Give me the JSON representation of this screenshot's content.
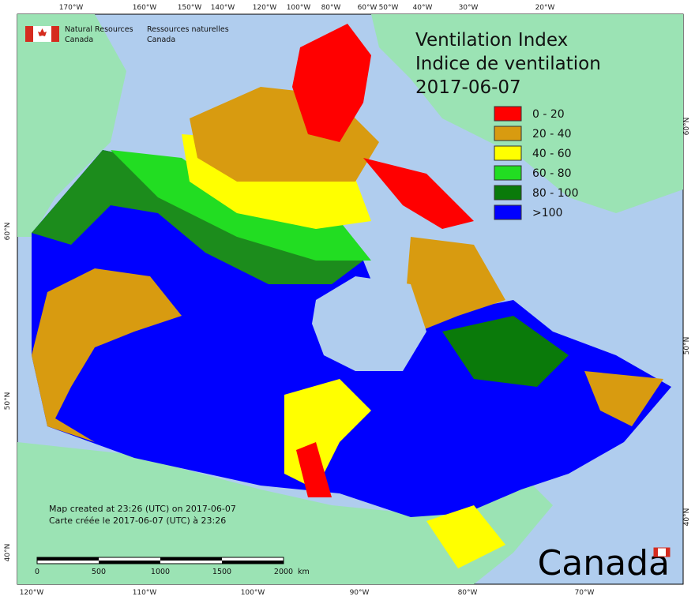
{
  "header": {
    "agency_en": [
      "Natural Resources",
      "Canada"
    ],
    "agency_fr": [
      "Ressources naturelles",
      "Canada"
    ]
  },
  "title": [
    "Ventilation Index",
    "Indice de ventilation",
    "2017-06-07"
  ],
  "legend": [
    {
      "label": "0 - 20",
      "color": "#ff0000"
    },
    {
      "label": "20 - 40",
      "color": "#d89b10"
    },
    {
      "label": "40 - 60",
      "color": "#ffff00"
    },
    {
      "label": "60 - 80",
      "color": "#22dd22"
    },
    {
      "label": "80 - 100",
      "color": "#0a7a0a"
    },
    {
      "label": ">100",
      "color": "#0000ff"
    }
  ],
  "graticule": {
    "top": [
      "170°W",
      "160°W",
      "150°W",
      "140°W",
      "120°W",
      "100°W",
      "80°W",
      "60°W",
      "50°W",
      "40°W",
      "30°W",
      "20°W"
    ],
    "bottom": [
      "120°W",
      "110°W",
      "100°W",
      "90°W",
      "80°W",
      "70°W"
    ],
    "left": [
      "60°N",
      "50°N",
      "40°N"
    ],
    "right": [
      "60°N",
      "50°N",
      "40°N"
    ]
  },
  "footnote": [
    "Map created at 23:26 (UTC) on 2017-06-07",
    "Carte créée le 2017-06-07 (UTC) à 23:26"
  ],
  "scale": {
    "ticks": [
      0,
      500,
      1000,
      1500,
      2000
    ],
    "unit": "km"
  },
  "wordmark": "Canada"
}
